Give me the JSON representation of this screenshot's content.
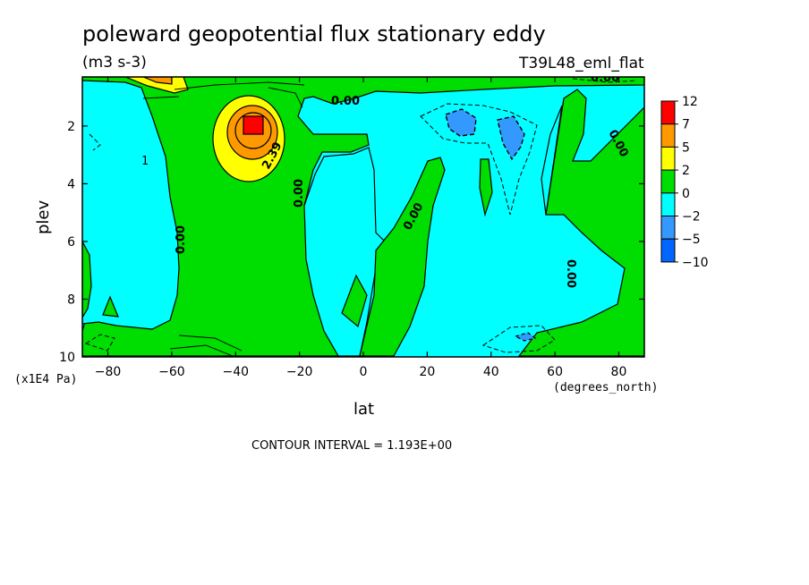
{
  "chart_data": {
    "type": "heatmap",
    "title": "poleward geopotential flux stationary eddy",
    "units": "(m3 s-3)",
    "experiment": "T39L48_eml_flat",
    "xlabel": "lat",
    "xunits": "(degrees_north)",
    "ylabel": "plev",
    "yunits": "(x1E4 Pa)",
    "xlim": [
      -88,
      88
    ],
    "ylim": [
      10,
      0.3
    ],
    "x_ticks": [
      -80,
      -60,
      -40,
      -20,
      0,
      20,
      40,
      60,
      80
    ],
    "x_tick_labels": [
      "−80",
      "−60",
      "−40",
      "−20",
      "0",
      "20",
      "40",
      "60",
      "80"
    ],
    "y_ticks": [
      2,
      4,
      6,
      8,
      10
    ],
    "y_tick_labels": [
      "2",
      "4",
      "6",
      "8",
      "10"
    ],
    "contour_interval_text": "CONTOUR INTERVAL = 1.193E+00",
    "contour_labels": [
      "0.00",
      "2.39",
      "0.00",
      "0.00",
      "0.00",
      "0.00",
      "0.00",
      "0.00"
    ],
    "colorbar": {
      "labels": [
        "12",
        "7",
        "5",
        "2",
        "0",
        "−2",
        "−5",
        "−10"
      ],
      "colors": [
        "#ff0000",
        "#ff9900",
        "#ffff00",
        "#00dd00",
        "#00ffff",
        "#3399ff",
        "#0066ff"
      ]
    },
    "features": [
      {
        "kind": "positive max",
        "lat": -34,
        "plev": 1.8,
        "value": 12
      },
      {
        "kind": "positive",
        "lat": -68,
        "plev": 0.5,
        "value": 5
      },
      {
        "kind": "negative",
        "lat": 30,
        "plev": 1.8,
        "value": -5
      },
      {
        "kind": "negative",
        "lat": 47,
        "plev": 2.0,
        "value": -5
      },
      {
        "kind": "negative",
        "lat": 50,
        "plev": 9.3,
        "value": -5
      }
    ]
  }
}
